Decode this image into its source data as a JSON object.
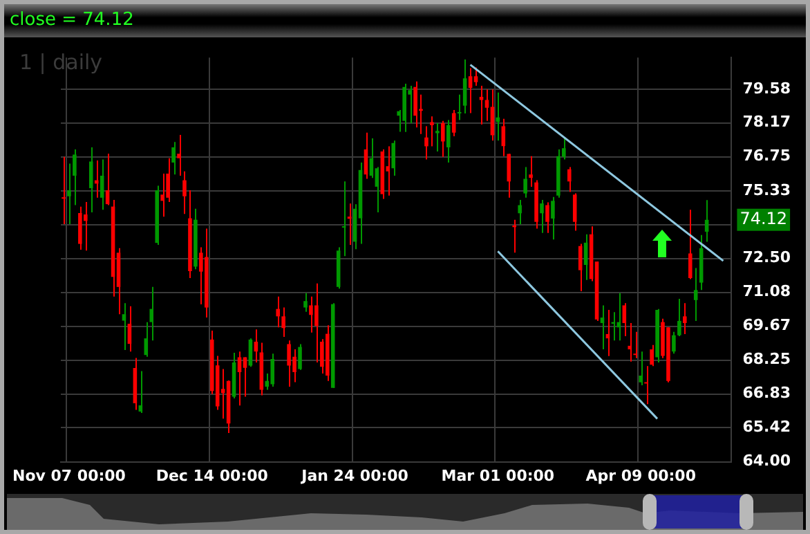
{
  "chart_data": {
    "type": "candlestick",
    "title": "close = 74.12",
    "subtitle": "1 | daily",
    "categories": [
      null,
      "Nov 07 00:00",
      null,
      null,
      null,
      null,
      null,
      null,
      null,
      null,
      null,
      null,
      null,
      null,
      null,
      null,
      null,
      null,
      null,
      null,
      null,
      null,
      null,
      null,
      null,
      null,
      null,
      "Dec 14 00:00",
      null,
      null,
      null,
      null,
      null,
      null,
      null,
      null,
      null,
      null,
      null,
      null,
      null,
      null,
      null,
      null,
      null,
      null,
      null,
      null,
      null,
      null,
      null,
      null,
      null,
      "Jan 24 00:00",
      null,
      null,
      null,
      null,
      null,
      null,
      null,
      null,
      null,
      null,
      null,
      null,
      null,
      null,
      null,
      null,
      null,
      null,
      null,
      null,
      null,
      null,
      null,
      null,
      null,
      "Mar 01 00:00",
      null,
      null,
      null,
      null,
      null,
      null,
      null,
      null,
      null,
      null,
      null,
      null,
      null,
      null,
      null,
      null,
      null,
      null,
      null,
      null,
      null,
      null,
      null,
      null,
      null,
      "Apr 09 00:00",
      null,
      null,
      null,
      null,
      null,
      null,
      null,
      null,
      null,
      null,
      null,
      null,
      null,
      null,
      null,
      null
    ],
    "ohlc": [
      [
        75.04,
        76.75,
        73.94,
        75.0
      ],
      [
        75.1,
        76.47,
        73.94,
        75.35
      ],
      [
        75.96,
        77.06,
        74.73,
        76.84
      ],
      [
        74.4,
        74.67,
        72.87,
        73.11
      ],
      [
        74.34,
        74.86,
        72.83,
        74.07
      ],
      [
        75.44,
        77.15,
        74.43,
        76.55
      ],
      [
        75.77,
        76.6,
        75.04,
        75.63
      ],
      [
        75.04,
        76.64,
        74.54,
        75.96
      ],
      [
        75.35,
        76.88,
        74.73,
        74.77
      ],
      [
        74.67,
        74.95,
        70.91,
        71.73
      ],
      [
        72.74,
        72.93,
        70.17,
        71.31
      ],
      [
        69.9,
        70.63,
        68.67,
        70.17
      ],
      [
        69.77,
        70.5,
        68.61,
        68.93
      ],
      [
        67.92,
        68.34,
        66.17,
        66.45
      ],
      [
        66.1,
        67.79,
        66.04,
        66.36
      ],
      [
        68.46,
        69.84,
        68.39,
        69.16
      ],
      [
        69.84,
        71.31,
        69.07,
        70.39
      ],
      [
        73.15,
        75.54,
        73.07,
        75.35
      ],
      [
        75.17,
        76.05,
        74.25,
        74.91
      ],
      [
        76.05,
        76.69,
        74.86,
        75.04
      ],
      [
        76.51,
        77.37,
        76.01,
        77.15
      ],
      [
        76.88,
        77.67,
        75.96,
        76.69
      ],
      [
        75.77,
        76.14,
        74.36,
        75.1
      ],
      [
        74.18,
        75.35,
        71.68,
        71.97
      ],
      [
        72.16,
        74.58,
        72.05,
        74.12
      ],
      [
        72.74,
        72.97,
        70.58,
        71.95
      ],
      [
        72.56,
        73.75,
        70.03,
        70.45
      ],
      [
        69.11,
        69.48,
        66.83,
        66.96
      ],
      [
        68.03,
        68.43,
        66.17,
        66.32
      ],
      [
        67.05,
        67.88,
        65.8,
        66.87
      ],
      [
        67.38,
        67.4,
        65.2,
        65.6
      ],
      [
        66.72,
        68.56,
        66.65,
        68.15
      ],
      [
        68.37,
        68.61,
        66.35,
        67.75
      ],
      [
        68.37,
        68.37,
        66.72,
        67.93
      ],
      [
        68.02,
        69.16,
        67.97,
        69.11
      ],
      [
        69.02,
        69.53,
        68.15,
        68.61
      ],
      [
        68.57,
        68.98,
        66.78,
        67.01
      ],
      [
        67.14,
        67.69,
        67.01,
        67.38
      ],
      [
        67.24,
        68.52,
        67.14,
        68.3
      ],
      [
        70.39,
        70.91,
        69.62,
        70.08
      ],
      [
        70.08,
        70.45,
        69.22,
        69.59
      ],
      [
        68.92,
        69.07,
        67.14,
        68.02
      ],
      [
        68.39,
        68.7,
        67.33,
        67.75
      ],
      [
        67.88,
        68.92,
        67.84,
        68.8
      ],
      [
        70.45,
        71.05,
        70.27,
        70.72
      ],
      [
        70.54,
        70.91,
        69.4,
        70.14
      ],
      [
        70.54,
        71.46,
        68.15,
        69.68
      ],
      [
        69.02,
        69.13,
        67.69,
        67.97
      ],
      [
        69.35,
        69.71,
        67.38,
        67.6
      ],
      [
        67.09,
        70.63,
        67.09,
        70.59
      ],
      [
        71.31,
        72.97,
        71.24,
        72.83
      ],
      [
        73.79,
        75.72,
        72.6,
        73.83
      ],
      [
        74.25,
        74.8,
        73.07,
        74.16
      ],
      [
        73.2,
        74.77,
        72.89,
        74.58
      ],
      [
        74.18,
        76.51,
        73.11,
        76.2
      ],
      [
        77.06,
        77.76,
        75.83,
        76.01
      ],
      [
        75.96,
        77.52,
        75.87,
        76.69
      ],
      [
        75.5,
        76.32,
        74.43,
        76.27
      ],
      [
        76.97,
        77.06,
        74.99,
        75.19
      ],
      [
        76.36,
        77.19,
        75.13,
        76.14
      ],
      [
        76.27,
        77.43,
        75.96,
        77.33
      ],
      [
        78.47,
        78.71,
        77.8,
        78.66
      ],
      [
        78.25,
        79.81,
        77.79,
        79.67
      ],
      [
        79.35,
        79.72,
        78.16,
        79.54
      ],
      [
        79.67,
        79.9,
        77.98,
        78.47
      ],
      [
        78.75,
        79.35,
        77.7,
        78.67
      ],
      [
        77.56,
        78.03,
        76.64,
        77.19
      ],
      [
        78.2,
        78.44,
        77.19,
        78.07
      ],
      [
        77.74,
        78.16,
        76.97,
        77.83
      ],
      [
        78.16,
        78.25,
        76.75,
        77.39
      ],
      [
        77.15,
        78.29,
        76.51,
        78.07
      ],
      [
        78.58,
        78.71,
        77.61,
        77.76
      ],
      [
        78.56,
        79.35,
        78.29,
        78.6
      ],
      [
        78.89,
        80.82,
        78.56,
        80.03
      ],
      [
        80.12,
        80.46,
        78.58,
        79.63
      ],
      [
        80.12,
        80.49,
        79.72,
        79.87
      ],
      [
        79.26,
        79.72,
        78.1,
        79.13
      ],
      [
        79.13,
        79.57,
        78.25,
        78.8
      ],
      [
        78.84,
        79.57,
        77.43,
        77.65
      ],
      [
        78.21,
        79.44,
        77.43,
        78.4
      ],
      [
        78.03,
        78.34,
        76.78,
        77.2
      ],
      [
        76.87,
        76.87,
        75.04,
        75.72
      ],
      [
        73.88,
        74.12,
        72.74,
        73.81
      ],
      [
        74.39,
        74.95,
        73.93,
        74.73
      ],
      [
        75.22,
        76.32,
        75.04,
        75.83
      ],
      [
        76.01,
        76.78,
        75.5,
        75.87
      ],
      [
        75.68,
        75.77,
        73.75,
        74.03
      ],
      [
        74.39,
        74.95,
        73.57,
        74.8
      ],
      [
        74.73,
        74.85,
        73.57,
        74.03
      ],
      [
        74.17,
        75.07,
        73.29,
        74.91
      ],
      [
        75.13,
        77.06,
        75.04,
        76.78
      ],
      [
        76.75,
        77.52,
        76.64,
        77.11
      ],
      [
        76.23,
        76.32,
        75.28,
        75.72
      ],
      [
        75.17,
        75.22,
        73.66,
        74.03
      ],
      [
        73.02,
        73.11,
        71.13,
        72.01
      ],
      [
        72.23,
        73.51,
        71.6,
        73.16
      ],
      [
        73.51,
        73.84,
        71.55,
        71.64
      ],
      [
        72.37,
        72.37,
        69.89,
        69.95
      ],
      [
        69.8,
        70.54,
        68.7,
        70.03
      ],
      [
        69.34,
        70.35,
        68.42,
        69.16
      ],
      [
        69.77,
        70.26,
        69.07,
        69.84
      ],
      [
        69.62,
        71.05,
        69.07,
        69.84
      ],
      [
        70.54,
        70.63,
        69.25,
        69.8
      ],
      [
        68.85,
        69.8,
        68.19,
        68.7
      ],
      [
        68.52,
        69.43,
        68.33,
        68.46
      ],
      [
        67.32,
        68.61,
        67.2,
        67.6
      ],
      [
        67.32,
        68.0,
        66.41,
        67.27
      ],
      [
        68.7,
        68.88,
        68.0,
        68.06
      ],
      [
        68.37,
        70.39,
        68.15,
        70.35
      ],
      [
        69.84,
        69.98,
        68.33,
        68.43
      ],
      [
        69.62,
        69.62,
        67.32,
        67.38
      ],
      [
        68.61,
        69.43,
        68.52,
        69.29
      ],
      [
        69.29,
        70.81,
        69.25,
        69.89
      ],
      [
        70.08,
        70.63,
        69.34,
        69.8
      ],
      [
        72.71,
        74.54,
        71.64,
        71.68
      ],
      [
        70.76,
        72.1,
        69.89,
        71.18
      ],
      [
        71.49,
        73.48,
        71.18,
        72.93
      ],
      [
        73.62,
        74.94,
        73.2,
        74.12
      ],
      null,
      null,
      null,
      null
    ],
    "colors": [
      "#ff0000",
      "#009900",
      "#009900",
      "#ff0000",
      "#ff0000",
      "#009900",
      "#ff0000",
      "#009900",
      "#ff0000",
      "#ff0000",
      "#ff0000",
      "#009900",
      "#ff0000",
      "#ff0000",
      "#009900",
      "#009900",
      "#009900",
      "#009900",
      "#ff0000",
      "#ff0000",
      "#009900",
      "#ff0000",
      "#ff0000",
      "#ff0000",
      "#009900",
      "#ff0000",
      "#ff0000",
      "#ff0000",
      "#ff0000",
      "#ff0000",
      "#ff0000",
      "#009900",
      "#ff0000",
      "#ff0000",
      "#009900",
      "#ff0000",
      "#ff0000",
      "#009900",
      "#009900",
      "#ff0000",
      "#ff0000",
      "#ff0000",
      "#ff0000",
      "#009900",
      "#009900",
      "#ff0000",
      "#ff0000",
      "#ff0000",
      "#ff0000",
      "#009900",
      "#009900",
      "#009900",
      "#ff0000",
      "#009900",
      "#009900",
      "#ff0000",
      "#009900",
      "#009900",
      "#ff0000",
      "#ff0000",
      "#009900",
      "#009900",
      "#009900",
      "#009900",
      "#ff0000",
      "#ff0000",
      "#ff0000",
      "#ff0000",
      "#009900",
      "#ff0000",
      "#009900",
      "#ff0000",
      "#009900",
      "#009900",
      "#ff0000",
      "#ff0000",
      "#ff0000",
      "#ff0000",
      "#ff0000",
      "#009900",
      "#ff0000",
      "#ff0000",
      "#ff0000",
      "#009900",
      "#009900",
      "#ff0000",
      "#ff0000",
      "#009900",
      "#ff0000",
      "#009900",
      "#009900",
      "#009900",
      "#ff0000",
      "#ff0000",
      "#ff0000",
      "#009900",
      "#ff0000",
      "#ff0000",
      "#009900",
      "#ff0000",
      "#009900",
      "#009900",
      "#ff0000",
      "#ff0000",
      "#ff0000",
      "#009900",
      "#ff0000",
      "#ff0000",
      "#009900",
      "#ff0000",
      "#ff0000",
      "#009900",
      "#009900",
      "#ff0000",
      "#ff0000",
      "#009900",
      "#009900",
      "#009900",
      null,
      null,
      null,
      null
    ],
    "series": [
      {
        "type": "line",
        "color": "#8ec8e0",
        "values": [
          null,
          null,
          null,
          null,
          null,
          null,
          null,
          null,
          null,
          null,
          null,
          null,
          null,
          null,
          null,
          null,
          null,
          null,
          null,
          null,
          null,
          null,
          null,
          null,
          null,
          null,
          null,
          null,
          null,
          null,
          null,
          null,
          null,
          null,
          null,
          null,
          null,
          null,
          null,
          null,
          null,
          null,
          null,
          null,
          null,
          null,
          null,
          null,
          null,
          null,
          null,
          null,
          null,
          null,
          null,
          null,
          null,
          null,
          null,
          null,
          null,
          null,
          null,
          null,
          null,
          null,
          null,
          null,
          null,
          null,
          null,
          null,
          null,
          null,
          80.6,
          null,
          null,
          null,
          null,
          null,
          null,
          null,
          null,
          null,
          null,
          null,
          null,
          null,
          null,
          null,
          null,
          null,
          null,
          null,
          null,
          null,
          null,
          null,
          null,
          null,
          null,
          null,
          null,
          null,
          null,
          null,
          null,
          null,
          null,
          null,
          null,
          null,
          null,
          null,
          null,
          null,
          null,
          null,
          null,
          null,
          72.4,
          null
        ]
      },
      {
        "type": "line",
        "color": "#8ec8e0",
        "values": [
          null,
          null,
          null,
          null,
          null,
          null,
          null,
          null,
          null,
          null,
          null,
          null,
          null,
          null,
          null,
          null,
          null,
          null,
          null,
          null,
          null,
          null,
          null,
          null,
          null,
          null,
          null,
          null,
          null,
          null,
          null,
          null,
          null,
          null,
          null,
          null,
          null,
          null,
          null,
          null,
          null,
          null,
          null,
          null,
          null,
          null,
          null,
          null,
          null,
          null,
          null,
          null,
          null,
          null,
          null,
          null,
          null,
          null,
          null,
          null,
          null,
          null,
          null,
          null,
          null,
          null,
          null,
          null,
          null,
          null,
          null,
          null,
          null,
          null,
          null,
          null,
          null,
          null,
          null,
          72.8,
          null,
          null,
          null,
          null,
          null,
          null,
          null,
          null,
          null,
          null,
          null,
          null,
          null,
          null,
          null,
          null,
          null,
          null,
          null,
          null,
          null,
          null,
          null,
          null,
          null,
          null,
          null,
          null,
          65.8,
          null,
          null,
          null,
          null,
          null,
          null,
          null,
          null,
          null,
          null,
          null,
          null,
          null
        ]
      }
    ],
    "ylim": [
      64,
      80.9
    ],
    "yticks": [
      {
        "value": 64,
        "label": "64.00"
      },
      {
        "value": 65.42,
        "label": "65.42"
      },
      {
        "value": 66.83,
        "label": "66.83"
      },
      {
        "value": 68.25,
        "label": "68.25"
      },
      {
        "value": 69.67,
        "label": "69.67"
      },
      {
        "value": 71.08,
        "label": "71.08"
      },
      {
        "value": 72.5,
        "label": "72.50"
      },
      {
        "value": 73.92,
        "label": null
      },
      {
        "value": 75.33,
        "label": "75.33"
      },
      {
        "value": 76.75,
        "label": "76.75"
      },
      {
        "value": 78.17,
        "label": "78.17"
      },
      {
        "value": 79.58,
        "label": "79.58"
      }
    ],
    "grid": true,
    "annotations": [
      "74.12"
    ]
  }
}
